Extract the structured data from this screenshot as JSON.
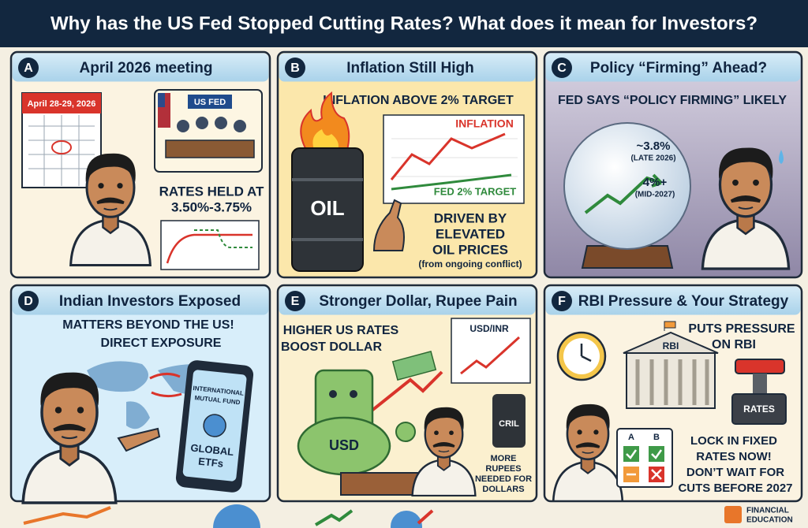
{
  "header": {
    "title": "Why has the US Fed Stopped Cutting Rates? What does it mean for Investors?"
  },
  "panels": [
    {
      "letter": "A",
      "title": "April 2026 meeting",
      "calendar": "April 28-29, 2026",
      "sign": "US FED",
      "caption": [
        "RATES HELD AT",
        "3.50%-3.75%"
      ]
    },
    {
      "letter": "B",
      "title": "Inflation Still High",
      "headline": "INFLATION ABOVE 2% TARGET",
      "series_labels": [
        "INFLATION",
        "FED 2% TARGET"
      ],
      "barrel": "OIL",
      "caption": [
        "DRIVEN BY",
        "ELEVATED",
        "OIL PRICES"
      ],
      "note": "(from ongoing conflict)"
    },
    {
      "letter": "C",
      "title": "Policy “Firming” Ahead?",
      "headline": "FED SAYS “POLICY FIRMING” LIKELY",
      "forecasts": [
        {
          "value": "~3.8%",
          "when": "(LATE 2026)"
        },
        {
          "value": "4%+",
          "when": "(MID-2027)"
        }
      ]
    },
    {
      "letter": "D",
      "title": "Indian Investors Exposed",
      "headline": [
        "MATTERS BEYOND THE US!",
        "DIRECT EXPOSURE"
      ],
      "phone": [
        "INTERNATIONAL",
        "MUTUAL FUND",
        "GLOBAL",
        "ETFs"
      ]
    },
    {
      "letter": "E",
      "title": "Stronger Dollar, Rupee Pain",
      "headline": [
        "HIGHER US RATES",
        "BOOST DOLLAR"
      ],
      "chart": "USD/INR",
      "bill": "USD",
      "barrel": "CRIL",
      "caption": [
        "MORE",
        "RUPEES",
        "NEEDED FOR",
        "DOLLARS"
      ]
    },
    {
      "letter": "F",
      "title": "RBI Pressure & Your Strategy",
      "headline": [
        "PUTS PRESSURE",
        "ON RBI"
      ],
      "building": "RBI",
      "button": "RATES",
      "options": [
        "A",
        "B"
      ],
      "caption": [
        "LOCK IN FIXED",
        "RATES NOW!",
        "DON’T WAIT FOR",
        "CUTS BEFORE 2027"
      ]
    }
  ],
  "footer": {
    "brand": [
      "FINANCIAL",
      "EDUCATION"
    ]
  }
}
